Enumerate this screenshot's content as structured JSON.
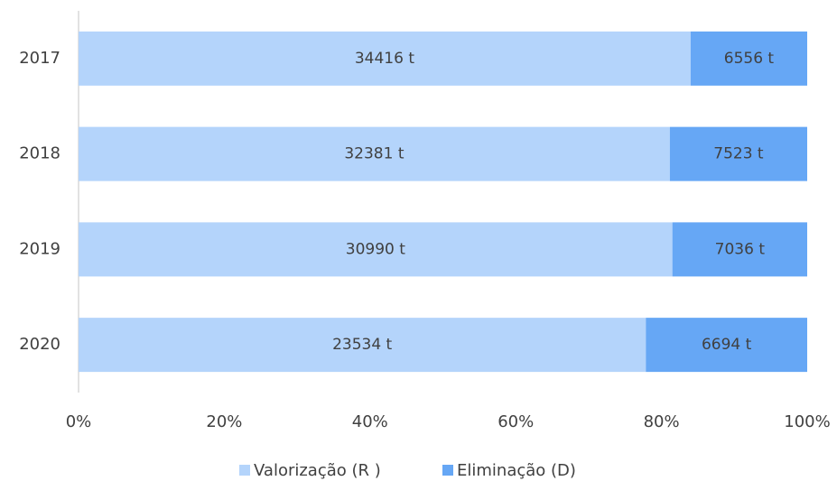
{
  "chart_data": {
    "type": "bar",
    "orientation": "horizontal",
    "stacked": true,
    "normalize": true,
    "categories": [
      "2017",
      "2018",
      "2019",
      "2020"
    ],
    "series": [
      {
        "name": "Valorização (R )",
        "color": "#b4d4fb",
        "values": [
          34416,
          32381,
          30990,
          23534
        ],
        "value_labels": [
          "34416 t",
          "32381 t",
          "30990 t",
          "23534 t"
        ]
      },
      {
        "name": "Eliminação (D)",
        "color": "#66a7f5",
        "values": [
          6556,
          7523,
          7036,
          6694
        ],
        "value_labels": [
          "6556 t",
          "7523 t",
          "7036 t",
          "6694 t"
        ]
      }
    ],
    "xlim": [
      0,
      100
    ],
    "xticks": [
      {
        "value": 0,
        "label": "0%"
      },
      {
        "value": 20,
        "label": "20%"
      },
      {
        "value": 40,
        "label": "40%"
      },
      {
        "value": 60,
        "label": "60%"
      },
      {
        "value": 80,
        "label": "80%"
      },
      {
        "value": 100,
        "label": "100%"
      }
    ],
    "grid": false,
    "legend": "bottom"
  }
}
